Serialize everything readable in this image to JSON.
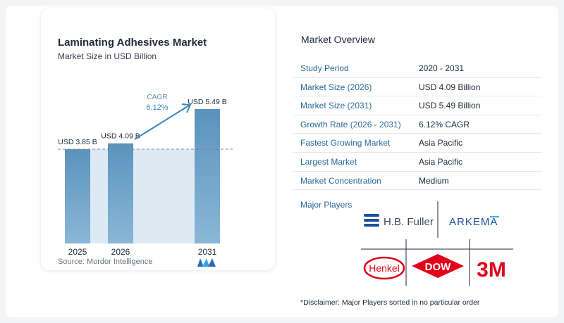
{
  "chart_data": {
    "type": "bar",
    "title": "Laminating Adhesives Market",
    "subtitle": "Market Size in USD Billion",
    "categories": [
      "2025",
      "2026",
      "2031"
    ],
    "values": [
      3.85,
      4.09,
      5.49
    ],
    "value_labels": [
      "USD 3.85 B",
      "USD 4.09 B",
      "USD 5.49 B"
    ],
    "cagr_label": "CAGR",
    "cagr_value": "6.12%",
    "ylim": [
      0,
      5.49
    ],
    "colors": {
      "bar": "#5b93bd",
      "bar_light": "#8ab7d6",
      "band": "#dde9f3",
      "accent": "#3a86c0",
      "dashed": "#7a8794"
    },
    "grid": false,
    "legend": "none"
  },
  "source": "Source:  Mordor Intelligence",
  "source_logo": "mordor-intelligence-logo",
  "overview": {
    "title": "Market Overview",
    "rows": [
      {
        "label": "Study Period",
        "value": "2020 - 2031"
      },
      {
        "label": "Market Size (2026)",
        "value": "USD 4.09 Billion"
      },
      {
        "label": "Market Size (2031)",
        "value": "USD 5.49 Billion"
      },
      {
        "label": "Growth Rate (2026 - 2031)",
        "value": "6.12% CAGR"
      },
      {
        "label": "Fastest Growing Market",
        "value": "Asia Pacific"
      },
      {
        "label": "Largest Market",
        "value": "Asia Pacific"
      },
      {
        "label": "Market Concentration",
        "value": "Medium"
      }
    ]
  },
  "players": {
    "title": "Major Players",
    "logos": [
      {
        "name": "H.B. Fuller",
        "color": "#1d4f9c"
      },
      {
        "name": "ARKEMA",
        "color": "#1f4e9c",
        "accent": "#36b3e0"
      },
      {
        "name": "Henkel",
        "color": "#e2001a"
      },
      {
        "name": "DOW",
        "color": "#e2001a"
      },
      {
        "name": "3M",
        "color": "#e2001a"
      }
    ]
  },
  "disclaimer": "*Disclaimer: Major Players sorted in no particular order"
}
